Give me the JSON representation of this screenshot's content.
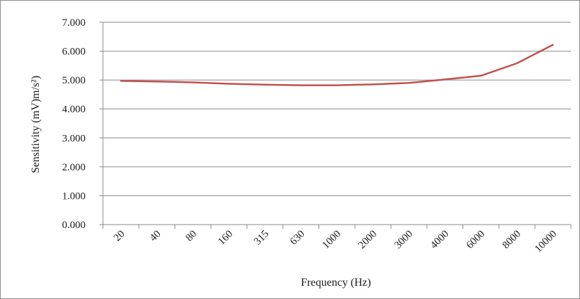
{
  "chart_data": {
    "type": "line",
    "title": "",
    "xlabel": "Frequency (Hz)",
    "ylabel": "Sensitivity (mV)m/s²)",
    "categories": [
      "20",
      "40",
      "80",
      "160",
      "315",
      "630",
      "1000",
      "2000",
      "3000",
      "4000",
      "6000",
      "8000",
      "10000"
    ],
    "series": [
      {
        "values": [
          4.97,
          4.95,
          4.92,
          4.87,
          4.84,
          4.82,
          4.82,
          4.85,
          4.9,
          5.02,
          5.15,
          5.58,
          6.22
        ]
      }
    ],
    "ylim": [
      0,
      7
    ],
    "yticks": [
      "0.000",
      "1.000",
      "2.000",
      "3.000",
      "4.000",
      "5.000",
      "6.000",
      "7.000"
    ],
    "grid": "horizontal",
    "line_color": "#c0504d"
  }
}
